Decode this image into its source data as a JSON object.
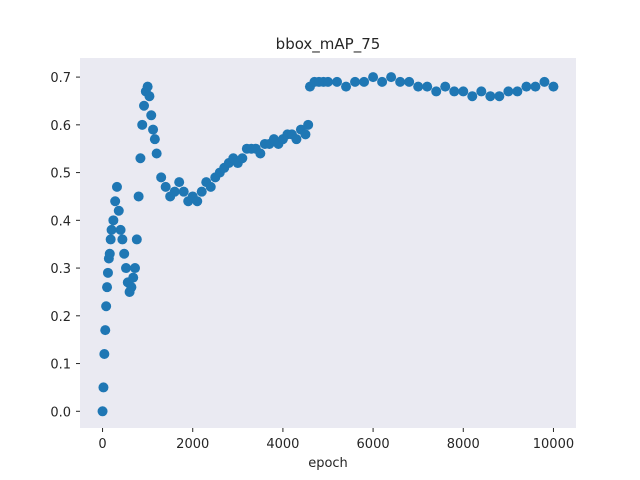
{
  "chart_data": {
    "type": "scatter",
    "title": "bbox_mAP_75",
    "xlabel": "epoch",
    "ylabel": "",
    "xlim": [
      -500,
      10500
    ],
    "ylim": [
      -0.035,
      0.74
    ],
    "x_ticks": [
      0,
      2000,
      4000,
      6000,
      8000,
      10000
    ],
    "x_tick_labels": [
      "0",
      "2000",
      "4000",
      "6000",
      "8000",
      "10000"
    ],
    "y_ticks": [
      0.0,
      0.1,
      0.2,
      0.3,
      0.4,
      0.5,
      0.6,
      0.7
    ],
    "y_tick_labels": [
      "0.0",
      "0.1",
      "0.2",
      "0.3",
      "0.4",
      "0.5",
      "0.6",
      "0.7"
    ],
    "grid": false,
    "background": "#eaeaf2",
    "series": [
      {
        "color": "#1f77b4",
        "x": [
          0,
          20,
          40,
          60,
          80,
          100,
          120,
          140,
          160,
          180,
          200,
          240,
          280,
          320,
          360,
          400,
          440,
          480,
          520,
          560,
          600,
          640,
          680,
          720,
          760,
          800,
          840,
          880,
          920,
          960,
          1000,
          1040,
          1080,
          1120,
          1160,
          1200,
          1300,
          1400,
          1500,
          1600,
          1700,
          1800,
          1900,
          2000,
          2100,
          2200,
          2300,
          2400,
          2500,
          2600,
          2700,
          2800,
          2900,
          3000,
          3100,
          3200,
          3300,
          3400,
          3500,
          3600,
          3700,
          3800,
          3900,
          4000,
          4100,
          4200,
          4300,
          4400,
          4500,
          4560,
          4600,
          4700,
          4800,
          4900,
          5000,
          5200,
          5400,
          5600,
          5800,
          6000,
          6200,
          6400,
          6600,
          6800,
          7000,
          7200,
          7400,
          7600,
          7800,
          8000,
          8200,
          8400,
          8600,
          8800,
          9000,
          9200,
          9400,
          9600,
          9800,
          10000
        ],
        "y": [
          0.0,
          0.05,
          0.12,
          0.17,
          0.22,
          0.26,
          0.29,
          0.32,
          0.33,
          0.36,
          0.38,
          0.4,
          0.44,
          0.47,
          0.42,
          0.38,
          0.36,
          0.33,
          0.3,
          0.27,
          0.25,
          0.26,
          0.28,
          0.3,
          0.36,
          0.45,
          0.53,
          0.6,
          0.64,
          0.67,
          0.68,
          0.66,
          0.62,
          0.59,
          0.57,
          0.54,
          0.49,
          0.47,
          0.45,
          0.46,
          0.48,
          0.46,
          0.44,
          0.45,
          0.44,
          0.46,
          0.48,
          0.47,
          0.49,
          0.5,
          0.51,
          0.52,
          0.53,
          0.52,
          0.53,
          0.55,
          0.55,
          0.55,
          0.54,
          0.56,
          0.56,
          0.57,
          0.56,
          0.57,
          0.58,
          0.58,
          0.57,
          0.59,
          0.58,
          0.6,
          0.68,
          0.69,
          0.69,
          0.69,
          0.69,
          0.69,
          0.68,
          0.69,
          0.69,
          0.7,
          0.69,
          0.7,
          0.69,
          0.69,
          0.68,
          0.68,
          0.67,
          0.68,
          0.67,
          0.67,
          0.66,
          0.67,
          0.66,
          0.66,
          0.67,
          0.67,
          0.68,
          0.68,
          0.69,
          0.68
        ]
      }
    ]
  }
}
